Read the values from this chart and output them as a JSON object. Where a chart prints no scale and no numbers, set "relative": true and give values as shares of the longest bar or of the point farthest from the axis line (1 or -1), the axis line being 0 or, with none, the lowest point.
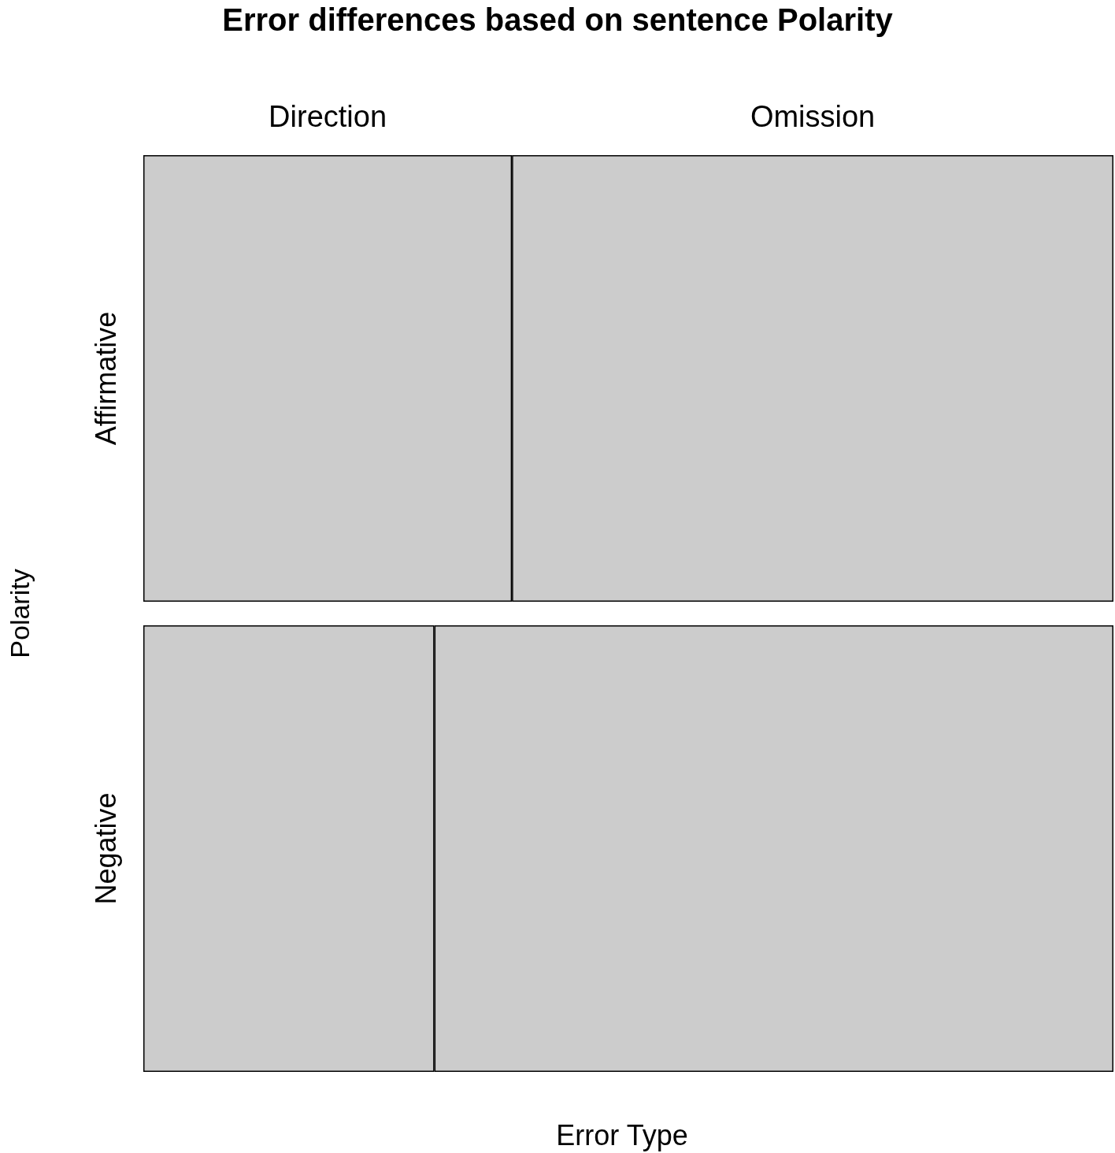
{
  "chart_data": {
    "type": "bar",
    "title": "Error differences based on sentence Polarity",
    "xlabel": "Error Type",
    "ylabel": "Polarity",
    "orientation": "horizontal",
    "stacked": true,
    "relative": true,
    "legend": false,
    "categories": [
      "Affirmative",
      "Negative"
    ],
    "series": [
      {
        "name": "Direction",
        "color": "#cccccc",
        "values": [
          0.38,
          0.3
        ]
      },
      {
        "name": "Omission",
        "color": "#cccccc",
        "values": [
          0.62,
          0.7
        ]
      }
    ]
  }
}
